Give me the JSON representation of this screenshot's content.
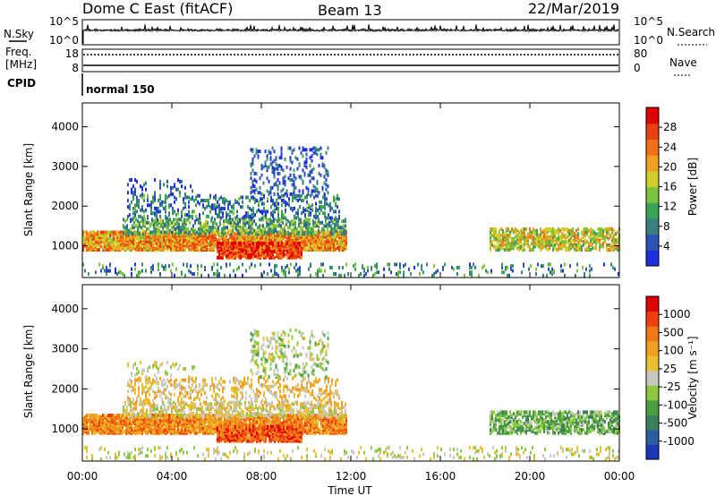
{
  "header": {
    "station": "Dome C East (fitACF)",
    "beam": "Beam 13",
    "date": "22/Mar/2019"
  },
  "top_panels": {
    "nsky_label": "N.Sky",
    "nsky_ticks": [
      "10^5",
      "10^0"
    ],
    "nsearch_label": "N.Search",
    "freq_label_1": "Freq.",
    "freq_label_2": "[MHz]",
    "freq_ticks": [
      "18",
      "8"
    ],
    "nave_label": "Nave",
    "nave_ticks": [
      "80",
      "0"
    ],
    "cpid_label": "CPID",
    "cpid_value": "normal 150"
  },
  "chart_data": [
    {
      "type": "heatmap",
      "ylabel": "Slant Range [km]",
      "xlabel": "",
      "ylim": [
        200,
        4600
      ],
      "yticks": [
        1000,
        2000,
        3000,
        4000
      ],
      "xlim_hours": [
        0,
        24
      ],
      "colorbar": {
        "label": "Power [dB]",
        "ticks": [
          "28",
          "24",
          "20",
          "16",
          "12",
          "8",
          "4"
        ],
        "colors": [
          "#1f2fe0",
          "#2a55b4",
          "#3a8080",
          "#3aa35a",
          "#7cc43c",
          "#d2cf2c",
          "#f0a020",
          "#f07018",
          "#e84010",
          "#e00000"
        ]
      }
    },
    {
      "type": "heatmap",
      "ylabel": "Slant Range [km]",
      "xlabel": "Time UT",
      "ylim": [
        200,
        4600
      ],
      "yticks": [
        1000,
        2000,
        3000,
        4000
      ],
      "xlim_hours": [
        0,
        24
      ],
      "xtick_labels": [
        "00:00",
        "04:00",
        "08:00",
        "12:00",
        "16:00",
        "20:00",
        "00:00"
      ],
      "colorbar": {
        "label": "Velocity [m s⁻¹]",
        "ticks": [
          "1000",
          "500",
          "100",
          "25",
          "-25",
          "-100",
          "-500",
          "-1000"
        ],
        "colors": [
          "#1c38b8",
          "#2a5ea0",
          "#3a8060",
          "#4aa040",
          "#8cc840",
          "#c8c8c0",
          "#e8c030",
          "#f0a020",
          "#f07818",
          "#f04010",
          "#e00000"
        ]
      }
    }
  ]
}
